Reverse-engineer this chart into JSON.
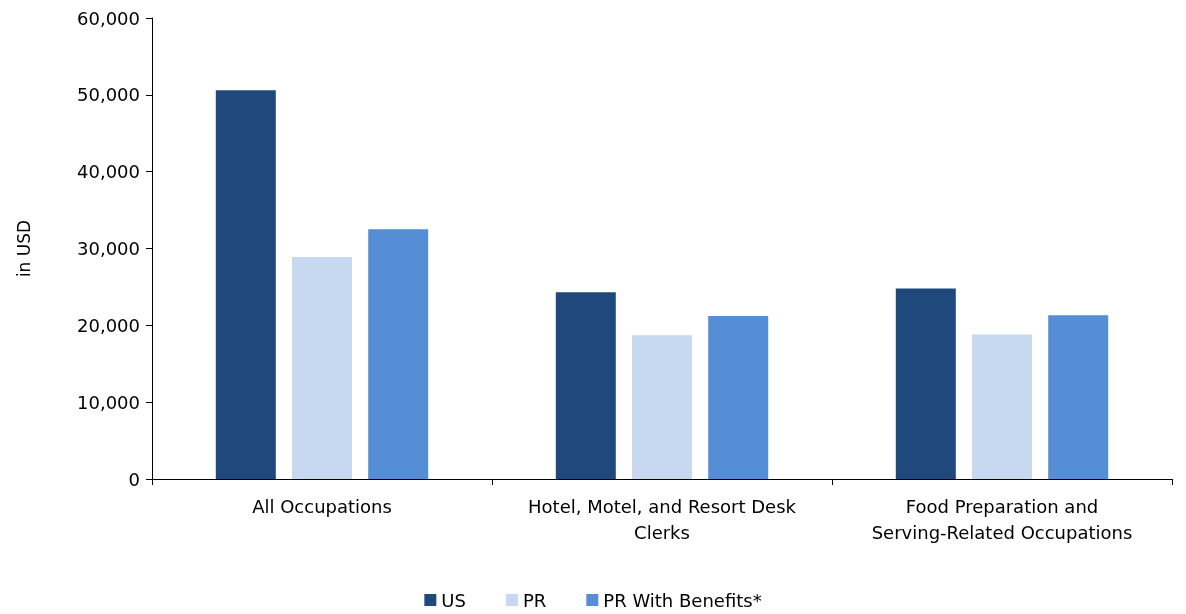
{
  "chart_data": {
    "type": "bar",
    "ylabel": "in USD",
    "categories": [
      "All Occupations",
      "Hotel, Motel, and Resort Desk Clerks",
      "Food Preparation and Serving-Related Occupations"
    ],
    "series": [
      {
        "name": "US",
        "color": "#1f497d",
        "values": [
          50600,
          24300,
          24800
        ]
      },
      {
        "name": "PR",
        "color": "#c6d9f1",
        "values": [
          28900,
          18700,
          18800
        ]
      },
      {
        "name": "PR With Benefits*",
        "color": "#558ed5",
        "values": [
          32500,
          21200,
          21300
        ]
      }
    ],
    "ylim": [
      0,
      60000
    ],
    "yticks": [
      0,
      {
        "value": 10000,
        "label": "10,000"
      },
      {
        "value": 20000,
        "label": "20,000"
      },
      {
        "value": 30000,
        "label": "30,000"
      },
      {
        "value": 40000,
        "label": "40,000"
      },
      {
        "value": 50000,
        "label": "50,000"
      },
      {
        "value": 60000,
        "label": "60,000"
      }
    ],
    "grid": false,
    "legend": "bottom"
  }
}
